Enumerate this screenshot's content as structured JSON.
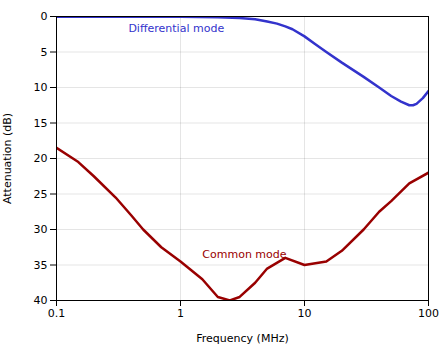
{
  "chart_data": {
    "type": "line",
    "xlabel": "Frequency (MHz)",
    "ylabel": "Attenuation (dB)",
    "log": "x",
    "grid": true,
    "xlim": [
      0.1,
      100
    ],
    "xticks": [
      0.1,
      1,
      10,
      100
    ],
    "ylim": [
      40,
      0
    ],
    "yticks": [
      0,
      5,
      10,
      15,
      20,
      25,
      30,
      35,
      40
    ],
    "series": [
      {
        "name": "Differential mode",
        "color": "#3333cc",
        "x": [
          0.1,
          0.2,
          0.5,
          1.0,
          2.0,
          3.0,
          4.0,
          5.0,
          6.0,
          7.0,
          8.0,
          10.0,
          12.0,
          15.0,
          20.0,
          30.0,
          40.0,
          50.0,
          60.0,
          70.0,
          75.0,
          80.0,
          90.0,
          100.0
        ],
        "values": [
          0.02,
          0.02,
          0.02,
          0.05,
          0.1,
          0.2,
          0.4,
          0.7,
          1.0,
          1.4,
          1.8,
          2.8,
          3.8,
          5.0,
          6.5,
          8.5,
          10.0,
          11.2,
          12.0,
          12.5,
          12.5,
          12.3,
          11.5,
          10.5
        ]
      },
      {
        "name": "Common mode",
        "color": "#990000",
        "x": [
          0.1,
          0.15,
          0.2,
          0.3,
          0.4,
          0.5,
          0.7,
          1.0,
          1.5,
          2.0,
          2.5,
          3.0,
          4.0,
          5.0,
          7.0,
          10.0,
          15.0,
          20.0,
          30.0,
          40.0,
          50.0,
          70.0,
          100.0
        ],
        "values": [
          18.5,
          20.5,
          22.5,
          25.5,
          28.0,
          30.0,
          32.5,
          34.5,
          37.0,
          39.5,
          40.0,
          39.5,
          37.5,
          35.5,
          34.0,
          35.0,
          34.5,
          33.0,
          30.0,
          27.5,
          26.0,
          23.5,
          22.0
        ]
      }
    ],
    "annotations": [
      {
        "text": "Differential mode",
        "x": 0.38,
        "y": 2.2,
        "color": "#3333cc"
      },
      {
        "text": "Common mode",
        "x": 1.5,
        "y": 34.0,
        "color": "#990000"
      }
    ]
  }
}
